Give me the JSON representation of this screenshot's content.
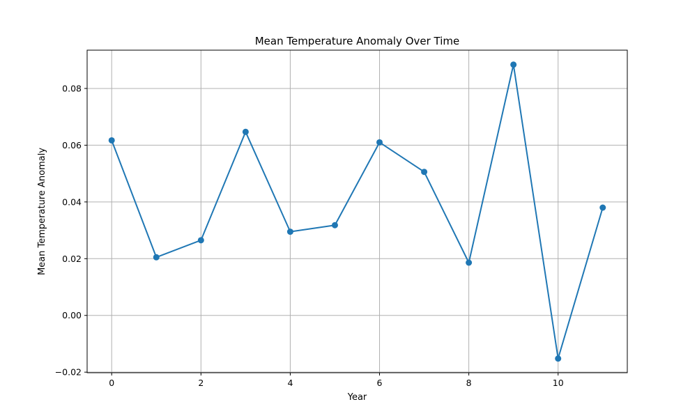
{
  "chart_data": {
    "type": "line",
    "title": "Mean Temperature Anomaly Over Time",
    "xlabel": "Year",
    "ylabel": "Mean Temperature Anomaly",
    "grid": true,
    "xlim": [
      -0.55,
      11.55
    ],
    "ylim": [
      -0.0202,
      0.0935
    ],
    "xticks": [
      0,
      2,
      4,
      6,
      8,
      10
    ],
    "xtick_labels": [
      "0",
      "2",
      "4",
      "6",
      "8",
      "10"
    ],
    "yticks": [
      -0.02,
      0.0,
      0.02,
      0.04,
      0.06,
      0.08
    ],
    "ytick_labels": [
      "−0.02",
      "0.00",
      "0.02",
      "0.04",
      "0.06",
      "0.08"
    ],
    "color": "#1f77b4",
    "marker": "circle",
    "x": [
      0,
      1,
      2,
      3,
      4,
      5,
      6,
      7,
      8,
      9,
      10,
      11
    ],
    "y": [
      0.0617,
      0.0205,
      0.0265,
      0.0647,
      0.0295,
      0.0318,
      0.061,
      0.0506,
      0.0186,
      0.0884,
      -0.0152,
      0.038
    ]
  }
}
